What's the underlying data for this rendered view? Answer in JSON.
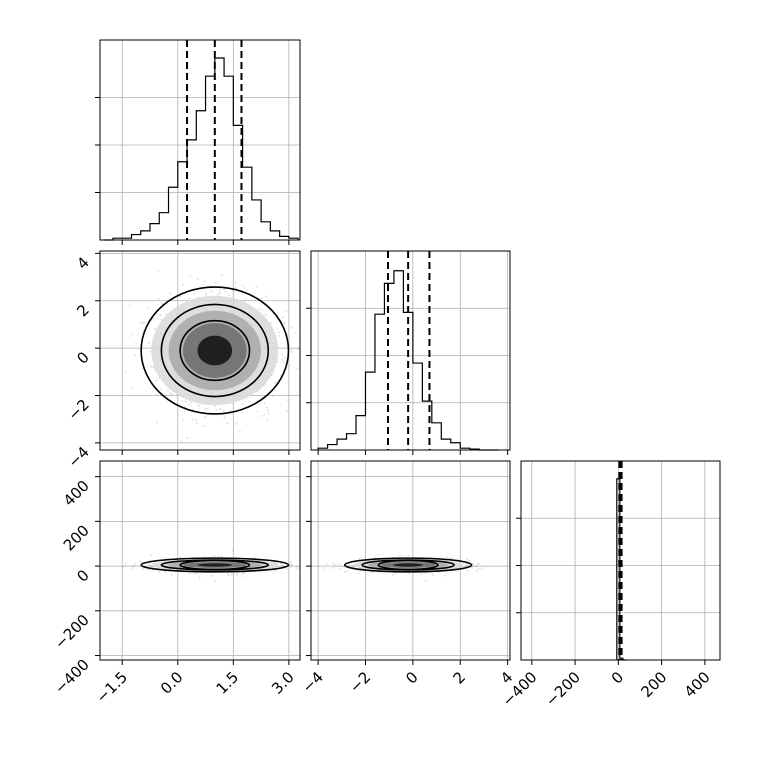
{
  "chart_data": [
    {
      "type": "histogram",
      "panel": "x-marginal",
      "bin_edges": [
        -2.0,
        -1.75,
        -1.5,
        -1.25,
        -1.0,
        -0.75,
        -0.5,
        -0.25,
        0.0,
        0.25,
        0.5,
        0.75,
        1.0,
        1.25,
        1.5,
        1.75,
        2.0,
        2.25,
        2.5,
        2.75,
        3.0,
        3.25
      ],
      "relative_heights": [
        0.0,
        0.01,
        0.01,
        0.03,
        0.05,
        0.09,
        0.15,
        0.29,
        0.43,
        0.55,
        0.71,
        0.9,
        1.0,
        0.9,
        0.63,
        0.4,
        0.22,
        0.1,
        0.05,
        0.02,
        0.01
      ],
      "quantiles": [
        0.25,
        1.0,
        1.72
      ],
      "xlim": [
        -2.1,
        3.3
      ],
      "grid": true
    },
    {
      "type": "histogram",
      "panel": "y-marginal",
      "bin_edges": [
        -4.0,
        -3.6,
        -3.2,
        -2.8,
        -2.4,
        -2.0,
        -1.6,
        -1.2,
        -0.8,
        -0.4,
        0.0,
        0.4,
        0.8,
        1.2,
        1.6,
        2.0,
        2.4,
        2.8,
        3.2,
        3.6
      ],
      "relative_heights": [
        0.01,
        0.03,
        0.06,
        0.09,
        0.19,
        0.43,
        0.75,
        0.92,
        0.99,
        0.76,
        0.48,
        0.27,
        0.15,
        0.06,
        0.04,
        0.01,
        0.005,
        0.0,
        0.0
      ],
      "quantiles": [
        -1.05,
        -0.2,
        0.7
      ],
      "xlim": [
        -4.3,
        4.1
      ],
      "grid": true
    },
    {
      "type": "histogram",
      "panel": "z-marginal",
      "bin_edges": [
        -7,
        7,
        21,
        35
      ],
      "relative_heights": [
        1.0,
        0.01,
        0.0
      ],
      "quantiles": [
        5,
        10,
        15
      ],
      "xlim": [
        -450,
        470
      ],
      "grid": true
    },
    {
      "type": "2d-density",
      "panel": "x-y",
      "center": [
        1.0,
        -0.1
      ],
      "spread": [
        0.78,
        1.05
      ],
      "contour_levels": 3,
      "xlim": [
        -2.1,
        3.3
      ],
      "ylim": [
        -4.3,
        4.1
      ],
      "grid": true
    },
    {
      "type": "2d-density",
      "panel": "x-z",
      "center": [
        1.0,
        5
      ],
      "spread": [
        0.78,
        12
      ],
      "contour_levels": 3,
      "xlim": [
        -2.1,
        3.3
      ],
      "ylim": [
        -420,
        470
      ],
      "grid": true
    },
    {
      "type": "2d-density",
      "panel": "y-z",
      "center": [
        -0.2,
        5
      ],
      "spread": [
        1.05,
        12
      ],
      "contour_levels": 3,
      "xlim": [
        -4.3,
        4.1
      ],
      "ylim": [
        -420,
        470
      ],
      "grid": true
    }
  ],
  "ticks": {
    "x": [
      "−1.5",
      "0.0",
      "1.5",
      "3.0"
    ],
    "x_values": [
      -1.5,
      0.0,
      1.5,
      3.0
    ],
    "y": [
      "−4",
      "−2",
      "0",
      "2",
      "4"
    ],
    "y_values": [
      -4,
      -2,
      0,
      2,
      4
    ],
    "z": [
      "−400",
      "−200",
      "0",
      "200",
      "400"
    ],
    "z_values": [
      -400,
      -200,
      0,
      200,
      400
    ]
  },
  "colors": {
    "line": "#000000",
    "grid": "#b0b0b0",
    "scatter": "#888888",
    "density_dark": "#111111"
  }
}
